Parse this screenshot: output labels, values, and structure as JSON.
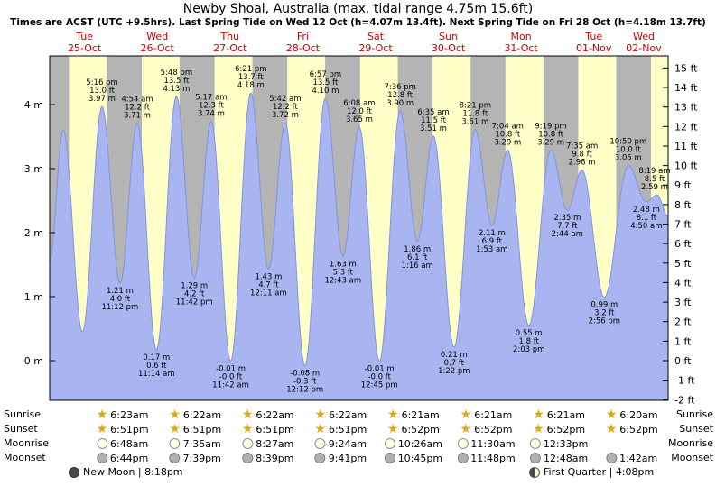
{
  "chart_data": {
    "type": "area",
    "title": "Newby Shoal, Australia (max. tidal range 4.75m 15.6ft)",
    "subtitle": "Times are ACST (UTC +9.5hrs). Last Spring Tide on Wed 12 Oct (h=4.07m 13.4ft). Next Spring Tide on Fri 28 Oct (h=4.18m 13.7ft)",
    "x_start": "Tue 25-Oct 00:00 ACST",
    "x_range_hours": [
      0,
      204
    ],
    "ylim_m": [
      -0.62,
      4.76
    ],
    "days": [
      {
        "weekday": "Tue",
        "date": "25-Oct"
      },
      {
        "weekday": "Wed",
        "date": "26-Oct"
      },
      {
        "weekday": "Thu",
        "date": "27-Oct"
      },
      {
        "weekday": "Fri",
        "date": "28-Oct"
      },
      {
        "weekday": "Sat",
        "date": "29-Oct"
      },
      {
        "weekday": "Sun",
        "date": "30-Oct"
      },
      {
        "weekday": "Mon",
        "date": "31-Oct"
      },
      {
        "weekday": "Tue",
        "date": "01-Nov"
      },
      {
        "weekday": "Wed",
        "date": "02-Nov"
      }
    ],
    "y_axis_left": {
      "unit": "m",
      "ticks": [
        0,
        1,
        2,
        3,
        4
      ],
      "labels": [
        "0 m",
        "1 m",
        "2 m",
        "3 m",
        "4 m"
      ]
    },
    "y_axis_right": {
      "unit": "ft",
      "ticks": [
        15,
        14,
        13,
        12,
        11,
        10,
        9,
        8,
        7,
        6,
        5,
        4,
        3,
        2,
        1,
        0,
        -1,
        -2
      ]
    },
    "endpoints": [
      {
        "t": 0,
        "height_m": 1.55
      },
      {
        "t": 204,
        "height_m": 2.25
      }
    ],
    "night_bands": [
      [
        0,
        6.38
      ],
      [
        18.85,
        30.38
      ],
      [
        42.85,
        54.37
      ],
      [
        66.85,
        78.37
      ],
      [
        90.85,
        102.37
      ],
      [
        114.85,
        126.35
      ],
      [
        138.87,
        150.35
      ],
      [
        162.87,
        174.35
      ],
      [
        186.87,
        198.33
      ]
    ],
    "tide_events": [
      {
        "t": 4.47,
        "height_m": 3.6,
        "type": "high",
        "annotated": false
      },
      {
        "t": 10.8,
        "height_m": 0.45,
        "type": "low",
        "annotated": false
      },
      {
        "t": 17.27,
        "height_m": 3.97,
        "ft": "13.0 ft",
        "time": "5:16 pm",
        "type": "high",
        "annotated": true
      },
      {
        "t": 23.2,
        "height_m": 1.21,
        "ft": "4.0 ft",
        "time": "11:12 pm",
        "type": "low",
        "annotated": true
      },
      {
        "t": 28.9,
        "height_m": 3.71,
        "ft": "12.2 ft",
        "time": "4:54 am",
        "type": "high",
        "annotated": true
      },
      {
        "t": 35.23,
        "height_m": 0.17,
        "ft": "0.6 ft",
        "time": "11:14 am",
        "type": "low",
        "annotated": true
      },
      {
        "t": 41.8,
        "height_m": 4.13,
        "ft": "13.5 ft",
        "time": "5:48 pm",
        "type": "high",
        "annotated": true
      },
      {
        "t": 47.7,
        "height_m": 1.29,
        "ft": "4.2 ft",
        "time": "11:42 pm",
        "type": "low",
        "annotated": true
      },
      {
        "t": 53.28,
        "height_m": 3.74,
        "ft": "12.3 ft",
        "time": "5:17 am",
        "type": "high",
        "annotated": true
      },
      {
        "t": 59.7,
        "height_m": -0.01,
        "ft": "-0.0 ft",
        "time": "11:42 am",
        "type": "low",
        "annotated": true
      },
      {
        "t": 66.35,
        "height_m": 4.18,
        "ft": "13.7 ft",
        "time": "6:21 pm",
        "type": "high",
        "annotated": true
      },
      {
        "t": 72.18,
        "height_m": 1.43,
        "ft": "4.7 ft",
        "time": "12:11 am",
        "type": "low",
        "annotated": true
      },
      {
        "t": 77.7,
        "height_m": 3.72,
        "ft": "12.2 ft",
        "time": "5:42 am",
        "type": "high",
        "annotated": true
      },
      {
        "t": 84.2,
        "height_m": -0.08,
        "ft": "-0.3 ft",
        "time": "12:12 pm",
        "type": "low",
        "annotated": true
      },
      {
        "t": 90.95,
        "height_m": 4.1,
        "ft": "13.5 ft",
        "time": "6:57 pm",
        "type": "high",
        "annotated": true
      },
      {
        "t": 96.72,
        "height_m": 1.63,
        "ft": "5.3 ft",
        "time": "12:43 am",
        "type": "low",
        "annotated": true
      },
      {
        "t": 102.13,
        "height_m": 3.65,
        "ft": "12.0 ft",
        "time": "6:08 am",
        "type": "high",
        "annotated": true
      },
      {
        "t": 108.75,
        "height_m": -0.01,
        "ft": "-0.0 ft",
        "time": "12:45 pm",
        "type": "low",
        "annotated": true
      },
      {
        "t": 115.6,
        "height_m": 3.9,
        "ft": "12.8 ft",
        "time": "7:36 pm",
        "type": "high",
        "annotated": true
      },
      {
        "t": 121.27,
        "height_m": 1.86,
        "ft": "6.1 ft",
        "time": "1:16 am",
        "type": "low",
        "annotated": true
      },
      {
        "t": 126.58,
        "height_m": 3.51,
        "ft": "11.5 ft",
        "time": "6:35 am",
        "type": "high",
        "annotated": true
      },
      {
        "t": 133.37,
        "height_m": 0.21,
        "ft": "0.7 ft",
        "time": "1:22 pm",
        "type": "low",
        "annotated": true
      },
      {
        "t": 140.35,
        "height_m": 3.61,
        "ft": "11.8 ft",
        "time": "8:21 pm",
        "type": "high",
        "annotated": true
      },
      {
        "t": 145.88,
        "height_m": 2.11,
        "ft": "6.9 ft",
        "time": "1:53 am",
        "type": "low",
        "annotated": true
      },
      {
        "t": 151.07,
        "height_m": 3.29,
        "ft": "10.8 ft",
        "time": "7:04 am",
        "type": "high",
        "annotated": true
      },
      {
        "t": 158.05,
        "height_m": 0.55,
        "ft": "1.8 ft",
        "time": "2:03 pm",
        "type": "low",
        "annotated": true
      },
      {
        "t": 165.32,
        "height_m": 3.29,
        "ft": "10.8 ft",
        "time": "9:19 pm",
        "type": "high",
        "annotated": true
      },
      {
        "t": 170.73,
        "height_m": 2.35,
        "ft": "7.7 ft",
        "time": "2:44 am",
        "type": "low",
        "annotated": true
      },
      {
        "t": 175.58,
        "height_m": 2.98,
        "ft": "9.8 ft",
        "time": "7:35 am",
        "type": "high",
        "annotated": true
      },
      {
        "t": 182.93,
        "height_m": 0.99,
        "ft": "3.2 ft",
        "time": "2:56 pm",
        "type": "low",
        "annotated": true
      },
      {
        "t": 190.83,
        "height_m": 3.05,
        "ft": "10.0 ft",
        "time": "10:50 pm",
        "type": "high",
        "annotated": true
      },
      {
        "t": 196.83,
        "height_m": 2.48,
        "ft": "8.1 ft",
        "time": "4:50 am",
        "type": "low",
        "annotated": true
      },
      {
        "t": 200.32,
        "height_m": 2.59,
        "ft": "8.5 ft",
        "time": "8:19 am",
        "type": "high",
        "annotated": true
      }
    ]
  },
  "astro": {
    "row_labels": [
      "Sunrise",
      "Sunset",
      "Moonrise",
      "Moonset"
    ],
    "sunrise": [
      "6:23am",
      "6:22am",
      "6:22am",
      "6:22am",
      "6:21am",
      "6:21am",
      "6:21am",
      "6:20am"
    ],
    "sunset": [
      "6:51pm",
      "6:51pm",
      "6:51pm",
      "6:51pm",
      "6:52pm",
      "6:52pm",
      "6:52pm",
      "6:52pm"
    ],
    "moonrise": [
      "6:48am",
      "7:35am",
      "8:27am",
      "9:24am",
      "10:26am",
      "11:30am",
      "12:33pm"
    ],
    "moonset": [
      "6:44pm",
      "7:39pm",
      "8:39pm",
      "9:41pm",
      "10:45pm",
      "11:48pm",
      "12:48am",
      "1:42am"
    ],
    "new_moon": "New Moon | 8:18pm",
    "first_quarter": "First Quarter | 4:08pm"
  },
  "colors": {
    "day": "#ffffc8",
    "night": "#b4b4b4",
    "tide": "#a9b5f1",
    "tide_edge": "#8492df",
    "day_label": "#cc0000"
  }
}
